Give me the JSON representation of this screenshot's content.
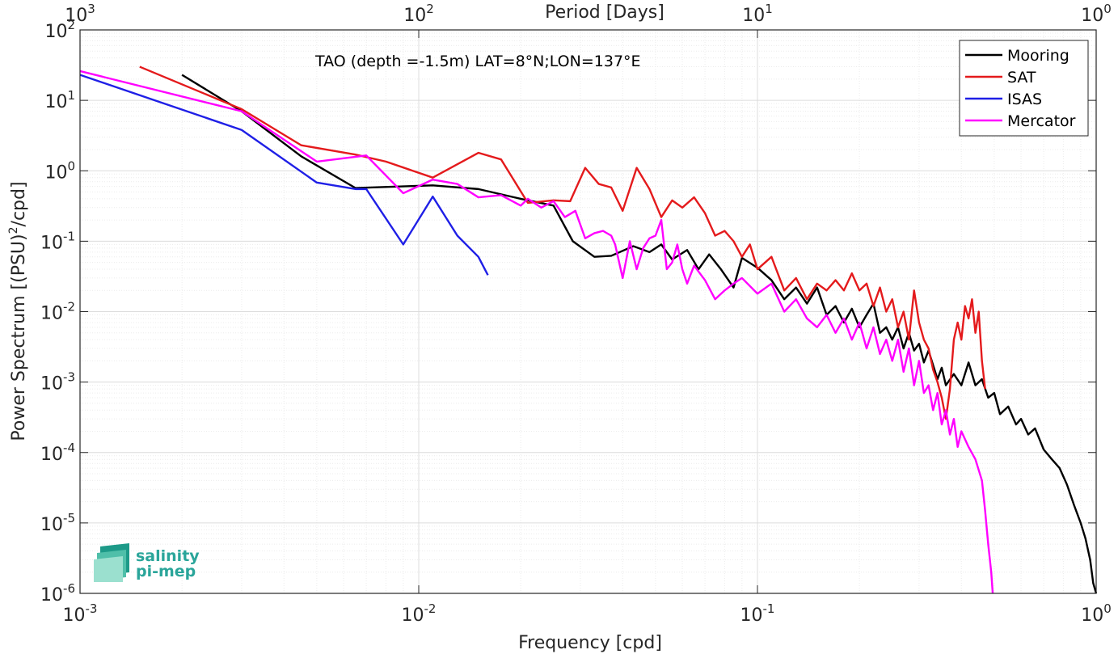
{
  "chart_data": {
    "type": "line",
    "title": "",
    "annotation": "TAO (depth =-1.5m) LAT=8°N;LON=137°E",
    "xlabel": "Frequency [cpd]",
    "ylabel_main": "Power Spectrum [(PSU)",
    "ylabel_sup": "2",
    "ylabel_tail": "/cpd]",
    "top_xlabel": "Period [Days]",
    "x_scale": "log",
    "y_scale": "log",
    "xlim": [
      0.001,
      1
    ],
    "ylim": [
      1e-06,
      100
    ],
    "grid": true,
    "legend_position": "top-right",
    "x_ticks": [
      {
        "value": 0.001,
        "base": "10",
        "exp": "-3"
      },
      {
        "value": 0.01,
        "base": "10",
        "exp": "-2"
      },
      {
        "value": 0.1,
        "base": "10",
        "exp": "-1"
      },
      {
        "value": 1,
        "base": "10",
        "exp": "0"
      }
    ],
    "y_ticks": [
      {
        "value": 1e-06,
        "base": "10",
        "exp": "-6"
      },
      {
        "value": 1e-05,
        "base": "10",
        "exp": "-5"
      },
      {
        "value": 0.0001,
        "base": "10",
        "exp": "-4"
      },
      {
        "value": 0.001,
        "base": "10",
        "exp": "-3"
      },
      {
        "value": 0.01,
        "base": "10",
        "exp": "-2"
      },
      {
        "value": 0.1,
        "base": "10",
        "exp": "-1"
      },
      {
        "value": 1,
        "base": "10",
        "exp": "0"
      },
      {
        "value": 10,
        "base": "10",
        "exp": "1"
      },
      {
        "value": 100,
        "base": "10",
        "exp": "2"
      }
    ],
    "top_ticks": [
      {
        "value": 0.001,
        "base": "10",
        "exp": "3"
      },
      {
        "value": 0.01,
        "base": "10",
        "exp": "2"
      },
      {
        "value": 0.1,
        "base": "10",
        "exp": "1"
      },
      {
        "value": 1,
        "base": "10",
        "exp": "0"
      }
    ],
    "series": [
      {
        "name": "Mooring",
        "color": "#000000",
        "points": [
          [
            0.002,
            23
          ],
          [
            0.003,
            7
          ],
          [
            0.0045,
            1.6
          ],
          [
            0.0065,
            0.57
          ],
          [
            0.011,
            0.62
          ],
          [
            0.015,
            0.55
          ],
          [
            0.02,
            0.4
          ],
          [
            0.025,
            0.32
          ],
          [
            0.0285,
            0.1
          ],
          [
            0.033,
            0.06
          ],
          [
            0.037,
            0.062
          ],
          [
            0.043,
            0.085
          ],
          [
            0.048,
            0.07
          ],
          [
            0.052,
            0.09
          ],
          [
            0.056,
            0.055
          ],
          [
            0.062,
            0.075
          ],
          [
            0.067,
            0.04
          ],
          [
            0.072,
            0.065
          ],
          [
            0.078,
            0.04
          ],
          [
            0.085,
            0.022
          ],
          [
            0.09,
            0.058
          ],
          [
            0.1,
            0.042
          ],
          [
            0.11,
            0.028
          ],
          [
            0.12,
            0.015
          ],
          [
            0.13,
            0.022
          ],
          [
            0.14,
            0.013
          ],
          [
            0.15,
            0.022
          ],
          [
            0.16,
            0.009
          ],
          [
            0.17,
            0.012
          ],
          [
            0.18,
            0.007
          ],
          [
            0.19,
            0.011
          ],
          [
            0.2,
            0.006
          ],
          [
            0.21,
            0.009
          ],
          [
            0.22,
            0.013
          ],
          [
            0.23,
            0.005
          ],
          [
            0.24,
            0.006
          ],
          [
            0.25,
            0.004
          ],
          [
            0.26,
            0.006
          ],
          [
            0.27,
            0.003
          ],
          [
            0.28,
            0.005
          ],
          [
            0.29,
            0.0028
          ],
          [
            0.3,
            0.0035
          ],
          [
            0.31,
            0.0019
          ],
          [
            0.32,
            0.0028
          ],
          [
            0.34,
            0.0011
          ],
          [
            0.35,
            0.0016
          ],
          [
            0.36,
            0.0009
          ],
          [
            0.38,
            0.0013
          ],
          [
            0.4,
            0.0009
          ],
          [
            0.42,
            0.0019
          ],
          [
            0.44,
            0.0009
          ],
          [
            0.46,
            0.0011
          ],
          [
            0.48,
            0.0006
          ],
          [
            0.5,
            0.0007
          ],
          [
            0.52,
            0.00035
          ],
          [
            0.55,
            0.00045
          ],
          [
            0.58,
            0.00025
          ],
          [
            0.6,
            0.0003
          ],
          [
            0.63,
            0.00018
          ],
          [
            0.66,
            0.00022
          ],
          [
            0.7,
            0.00011
          ],
          [
            0.74,
            8e-05
          ],
          [
            0.78,
            6e-05
          ],
          [
            0.82,
            3.5e-05
          ],
          [
            0.86,
            1.8e-05
          ],
          [
            0.9,
            1e-05
          ],
          [
            0.93,
            6e-06
          ],
          [
            0.96,
            3e-06
          ],
          [
            0.98,
            1.4e-06
          ],
          [
            1.0,
            1e-06
          ]
        ]
      },
      {
        "name": "SAT",
        "color": "#e41a1c",
        "points": [
          [
            0.0015,
            30
          ],
          [
            0.003,
            7.5
          ],
          [
            0.0045,
            2.3
          ],
          [
            0.0065,
            1.7
          ],
          [
            0.008,
            1.35
          ],
          [
            0.011,
            0.8
          ],
          [
            0.015,
            1.8
          ],
          [
            0.0175,
            1.45
          ],
          [
            0.021,
            0.35
          ],
          [
            0.025,
            0.38
          ],
          [
            0.028,
            0.37
          ],
          [
            0.031,
            1.1
          ],
          [
            0.034,
            0.65
          ],
          [
            0.037,
            0.58
          ],
          [
            0.04,
            0.27
          ],
          [
            0.044,
            1.1
          ],
          [
            0.048,
            0.55
          ],
          [
            0.052,
            0.22
          ],
          [
            0.056,
            0.38
          ],
          [
            0.06,
            0.3
          ],
          [
            0.065,
            0.42
          ],
          [
            0.07,
            0.25
          ],
          [
            0.075,
            0.12
          ],
          [
            0.08,
            0.14
          ],
          [
            0.085,
            0.1
          ],
          [
            0.09,
            0.06
          ],
          [
            0.095,
            0.09
          ],
          [
            0.1,
            0.04
          ],
          [
            0.11,
            0.06
          ],
          [
            0.12,
            0.02
          ],
          [
            0.13,
            0.03
          ],
          [
            0.14,
            0.015
          ],
          [
            0.15,
            0.025
          ],
          [
            0.16,
            0.02
          ],
          [
            0.17,
            0.028
          ],
          [
            0.18,
            0.02
          ],
          [
            0.19,
            0.035
          ],
          [
            0.2,
            0.02
          ],
          [
            0.21,
            0.025
          ],
          [
            0.22,
            0.012
          ],
          [
            0.23,
            0.022
          ],
          [
            0.24,
            0.01
          ],
          [
            0.25,
            0.015
          ],
          [
            0.26,
            0.006
          ],
          [
            0.27,
            0.01
          ],
          [
            0.28,
            0.004
          ],
          [
            0.29,
            0.02
          ],
          [
            0.3,
            0.007
          ],
          [
            0.31,
            0.004
          ],
          [
            0.32,
            0.003
          ],
          [
            0.33,
            0.0015
          ],
          [
            0.34,
            0.001
          ],
          [
            0.35,
            0.0006
          ],
          [
            0.36,
            0.0003
          ],
          [
            0.37,
            0.0008
          ],
          [
            0.38,
            0.004
          ],
          [
            0.39,
            0.007
          ],
          [
            0.4,
            0.004
          ],
          [
            0.41,
            0.012
          ],
          [
            0.42,
            0.008
          ],
          [
            0.43,
            0.015
          ],
          [
            0.44,
            0.005
          ],
          [
            0.45,
            0.01
          ],
          [
            0.46,
            0.002
          ],
          [
            0.47,
            0.0008
          ]
        ]
      },
      {
        "name": "ISAS",
        "color": "#1f1fe6",
        "points": [
          [
            0.001,
            23
          ],
          [
            0.003,
            3.8
          ],
          [
            0.005,
            0.68
          ],
          [
            0.0065,
            0.55
          ],
          [
            0.007,
            0.55
          ],
          [
            0.009,
            0.09
          ],
          [
            0.011,
            0.43
          ],
          [
            0.013,
            0.12
          ],
          [
            0.015,
            0.06
          ],
          [
            0.016,
            0.033
          ]
        ]
      },
      {
        "name": "Mercator",
        "color": "#ff00ff",
        "points": [
          [
            0.001,
            26
          ],
          [
            0.003,
            7
          ],
          [
            0.005,
            1.35
          ],
          [
            0.007,
            1.65
          ],
          [
            0.009,
            0.48
          ],
          [
            0.011,
            0.75
          ],
          [
            0.013,
            0.65
          ],
          [
            0.015,
            0.42
          ],
          [
            0.0175,
            0.45
          ],
          [
            0.02,
            0.32
          ],
          [
            0.021,
            0.4
          ],
          [
            0.023,
            0.3
          ],
          [
            0.025,
            0.37
          ],
          [
            0.027,
            0.22
          ],
          [
            0.029,
            0.27
          ],
          [
            0.031,
            0.11
          ],
          [
            0.033,
            0.13
          ],
          [
            0.035,
            0.14
          ],
          [
            0.037,
            0.12
          ],
          [
            0.038,
            0.09
          ],
          [
            0.04,
            0.03
          ],
          [
            0.042,
            0.1
          ],
          [
            0.044,
            0.04
          ],
          [
            0.046,
            0.08
          ],
          [
            0.048,
            0.11
          ],
          [
            0.05,
            0.12
          ],
          [
            0.052,
            0.2
          ],
          [
            0.054,
            0.04
          ],
          [
            0.056,
            0.05
          ],
          [
            0.058,
            0.09
          ],
          [
            0.06,
            0.04
          ],
          [
            0.062,
            0.025
          ],
          [
            0.065,
            0.045
          ],
          [
            0.07,
            0.028
          ],
          [
            0.075,
            0.015
          ],
          [
            0.08,
            0.02
          ],
          [
            0.085,
            0.025
          ],
          [
            0.09,
            0.03
          ],
          [
            0.1,
            0.018
          ],
          [
            0.11,
            0.025
          ],
          [
            0.12,
            0.01
          ],
          [
            0.13,
            0.015
          ],
          [
            0.14,
            0.008
          ],
          [
            0.15,
            0.006
          ],
          [
            0.16,
            0.009
          ],
          [
            0.17,
            0.005
          ],
          [
            0.18,
            0.008
          ],
          [
            0.19,
            0.004
          ],
          [
            0.2,
            0.007
          ],
          [
            0.21,
            0.003
          ],
          [
            0.22,
            0.006
          ],
          [
            0.23,
            0.0025
          ],
          [
            0.24,
            0.004
          ],
          [
            0.25,
            0.002
          ],
          [
            0.26,
            0.004
          ],
          [
            0.27,
            0.0014
          ],
          [
            0.28,
            0.003
          ],
          [
            0.29,
            0.0009
          ],
          [
            0.3,
            0.002
          ],
          [
            0.31,
            0.0007
          ],
          [
            0.32,
            0.0009
          ],
          [
            0.33,
            0.0004
          ],
          [
            0.34,
            0.0007
          ],
          [
            0.35,
            0.00025
          ],
          [
            0.36,
            0.0004
          ],
          [
            0.37,
            0.00018
          ],
          [
            0.38,
            0.0003
          ],
          [
            0.39,
            0.00012
          ],
          [
            0.4,
            0.0002
          ],
          [
            0.42,
            0.00012
          ],
          [
            0.44,
            8e-05
          ],
          [
            0.46,
            4e-05
          ],
          [
            0.47,
            1.5e-05
          ],
          [
            0.48,
            5e-06
          ],
          [
            0.49,
            2e-06
          ],
          [
            0.495,
            1e-06
          ]
        ]
      }
    ]
  },
  "logo": {
    "line1": "salinity",
    "line2": "pi-mep",
    "colors": [
      "#0f7a6b",
      "#1d9a88",
      "#4fbfa9",
      "#9be0cf"
    ]
  }
}
